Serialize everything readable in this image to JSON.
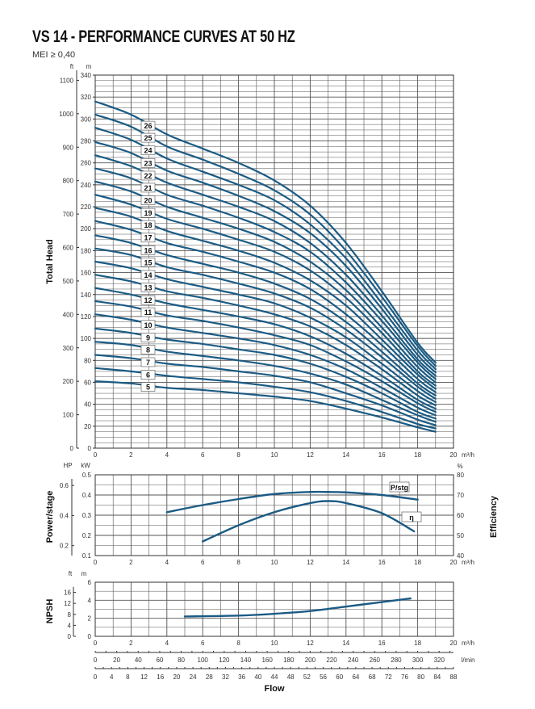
{
  "title": "VS 14 - PERFORMANCE CURVES AT 50 HZ",
  "subtitle": "MEI ≥ 0,40",
  "colors": {
    "curve": "#1b5b84",
    "grid": "#555555"
  },
  "chart_data": [
    {
      "type": "line",
      "name": "head",
      "ylabel": "Total Head",
      "y_unit": "m",
      "y2_unit": "ft",
      "x_unit": "m³/h",
      "xlim": [
        0,
        20
      ],
      "ylim": [
        0,
        340
      ],
      "grid": true,
      "x_ticks": [
        "0",
        "2",
        "4",
        "6",
        "8",
        "10",
        "12",
        "14",
        "16",
        "18",
        "20"
      ],
      "y_ticks": [
        "0",
        "20",
        "40",
        "60",
        "80",
        "100",
        "120",
        "140",
        "160",
        "180",
        "200",
        "220",
        "240",
        "260",
        "280",
        "300",
        "320",
        "340"
      ],
      "ft_ticks": [
        "0",
        "100",
        "200",
        "300",
        "400",
        "500",
        "600",
        "700",
        "800",
        "900",
        "1000",
        "1100"
      ],
      "x": [
        0,
        2,
        4,
        6,
        8,
        10,
        12,
        14,
        16,
        18,
        19
      ],
      "series": [
        {
          "name": "5",
          "values": [
            61,
            59,
            55,
            53,
            50,
            47,
            43,
            36,
            28,
            19,
            15
          ]
        },
        {
          "name": "6",
          "values": [
            73,
            70,
            66,
            63,
            60,
            56,
            51,
            43,
            33,
            22,
            18
          ]
        },
        {
          "name": "7",
          "values": [
            85,
            82,
            77,
            74,
            70,
            66,
            60,
            50,
            39,
            26,
            21
          ]
        },
        {
          "name": "8",
          "values": [
            97,
            94,
            88,
            84,
            80,
            75,
            68,
            58,
            44,
            30,
            24
          ]
        },
        {
          "name": "9",
          "values": [
            109,
            105,
            99,
            95,
            90,
            85,
            77,
            65,
            50,
            33,
            27
          ]
        },
        {
          "name": "10",
          "values": [
            122,
            117,
            110,
            105,
            100,
            94,
            85,
            72,
            55,
            37,
            30
          ]
        },
        {
          "name": "11",
          "values": [
            134,
            129,
            121,
            116,
            110,
            103,
            94,
            79,
            61,
            41,
            33
          ]
        },
        {
          "name": "12",
          "values": [
            146,
            140,
            132,
            126,
            120,
            113,
            102,
            86,
            66,
            44,
            36
          ]
        },
        {
          "name": "13",
          "values": [
            158,
            152,
            143,
            137,
            130,
            122,
            111,
            94,
            72,
            48,
            39
          ]
        },
        {
          "name": "14",
          "values": [
            170,
            164,
            154,
            147,
            140,
            132,
            119,
            101,
            77,
            52,
            42
          ]
        },
        {
          "name": "15",
          "values": [
            182,
            176,
            165,
            158,
            150,
            141,
            128,
            108,
            83,
            56,
            45
          ]
        },
        {
          "name": "16",
          "values": [
            194,
            187,
            176,
            168,
            160,
            150,
            136,
            115,
            88,
            59,
            48
          ]
        },
        {
          "name": "17",
          "values": [
            207,
            199,
            187,
            179,
            170,
            160,
            145,
            122,
            94,
            63,
            51
          ]
        },
        {
          "name": "18",
          "values": [
            219,
            211,
            198,
            189,
            180,
            169,
            153,
            130,
            99,
            67,
            54
          ]
        },
        {
          "name": "19",
          "values": [
            231,
            222,
            209,
            200,
            190,
            179,
            162,
            137,
            105,
            70,
            57
          ]
        },
        {
          "name": "20",
          "values": [
            243,
            234,
            220,
            210,
            200,
            188,
            170,
            144,
            110,
            74,
            60
          ]
        },
        {
          "name": "21",
          "values": [
            255,
            246,
            231,
            221,
            210,
            197,
            179,
            151,
            116,
            78,
            63
          ]
        },
        {
          "name": "22",
          "values": [
            267,
            257,
            242,
            231,
            220,
            207,
            187,
            158,
            121,
            81,
            66
          ]
        },
        {
          "name": "23",
          "values": [
            279,
            269,
            253,
            242,
            230,
            216,
            196,
            166,
            127,
            85,
            69
          ]
        },
        {
          "name": "24",
          "values": [
            292,
            281,
            264,
            252,
            240,
            226,
            204,
            173,
            132,
            89,
            72
          ]
        },
        {
          "name": "25",
          "values": [
            304,
            293,
            275,
            263,
            250,
            235,
            213,
            180,
            138,
            93,
            75
          ]
        },
        {
          "name": "26",
          "values": [
            316,
            304,
            286,
            273,
            260,
            244,
            221,
            187,
            143,
            96,
            78
          ]
        }
      ]
    },
    {
      "type": "line",
      "name": "power-efficiency",
      "ylabel": "Power/stage",
      "y2label": "Efficiency",
      "y_unit": "kW",
      "hp_unit": "HP",
      "y2_unit": "%",
      "x_unit": "m³/h",
      "xlim": [
        0,
        20
      ],
      "ylim": [
        0.1,
        0.5
      ],
      "y2lim": [
        40,
        80
      ],
      "grid": true,
      "x_ticks": [
        "0",
        "2",
        "4",
        "6",
        "8",
        "10",
        "12",
        "14",
        "16",
        "18",
        "20"
      ],
      "y_ticks": [
        "0.1",
        "0.2",
        "0.3",
        "0.4",
        "0.5"
      ],
      "hp_ticks": [
        "0.2",
        "0.4",
        "0.6"
      ],
      "y2_ticks": [
        "40",
        "50",
        "60",
        "70",
        "80"
      ],
      "series": [
        {
          "name": "P/stg",
          "axis": "kW",
          "x": [
            4,
            6,
            8,
            10,
            12,
            13,
            14,
            16,
            18
          ],
          "values": [
            0.315,
            0.35,
            0.38,
            0.405,
            0.415,
            0.415,
            0.413,
            0.4,
            0.377
          ]
        },
        {
          "name": "η",
          "axis": "%",
          "x": [
            6,
            8,
            10,
            12,
            13,
            14,
            16,
            17.8
          ],
          "values": [
            47,
            55,
            61.5,
            66,
            67,
            66,
            61,
            52
          ]
        }
      ]
    },
    {
      "type": "line",
      "name": "npsh",
      "ylabel": "NPSH",
      "y_unit": "m",
      "y2_unit": "ft",
      "x_unit": "m³/h",
      "xlim": [
        0,
        20
      ],
      "ylim": [
        0,
        6
      ],
      "grid": true,
      "x_ticks": [
        "0",
        "2",
        "4",
        "6",
        "8",
        "10",
        "12",
        "14",
        "16",
        "18",
        "20"
      ],
      "y_ticks": [
        "0",
        "2",
        "4",
        "6"
      ],
      "ft_ticks": [
        "0",
        "4",
        "8",
        "12",
        "16"
      ],
      "series": [
        {
          "x": [
            5,
            8,
            10,
            12,
            14,
            16,
            17.6
          ],
          "values": [
            2.2,
            2.3,
            2.5,
            2.8,
            3.3,
            3.8,
            4.2
          ]
        }
      ]
    }
  ],
  "flow_axes": {
    "label": "Flow",
    "lmin_unit": "l/min",
    "lmin_ticks": [
      "0",
      "20",
      "40",
      "60",
      "80",
      "100",
      "120",
      "140",
      "160",
      "180",
      "200",
      "220",
      "240",
      "260",
      "280",
      "300",
      "320"
    ],
    "gpm_ticks": [
      "0",
      "4",
      "8",
      "12",
      "16",
      "20",
      "24",
      "28",
      "32",
      "36",
      "40",
      "44",
      "48",
      "52",
      "56",
      "60",
      "64",
      "68",
      "72",
      "76",
      "80",
      "84",
      "88"
    ]
  }
}
